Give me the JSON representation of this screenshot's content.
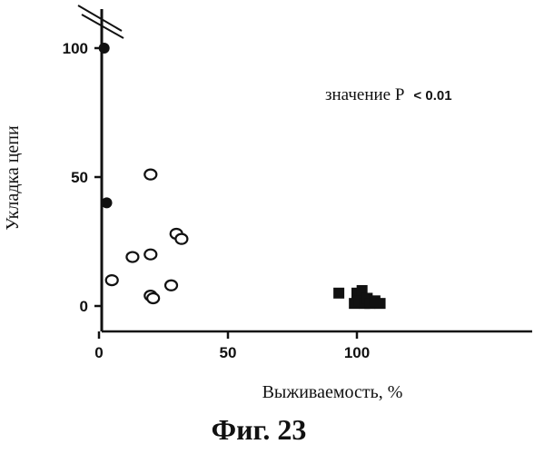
{
  "chart_data": {
    "type": "scatter",
    "xlabel": "Выживаемость, %",
    "ylabel": "Укладка цепи",
    "xlim": [
      0,
      125
    ],
    "ylim": [
      0,
      110
    ],
    "x_ticks": [
      "0",
      "50",
      "100"
    ],
    "y_ticks": [
      "0",
      "50",
      "100"
    ],
    "x_tick_values": [
      0,
      50,
      100
    ],
    "y_tick_values": [
      0,
      50,
      100
    ],
    "y_axis_break": true,
    "annotation": {
      "text": "значение P",
      "value": "< 0.01"
    },
    "series": [
      {
        "marker": "filled-circle",
        "points": [
          {
            "x": 2,
            "y": 100
          },
          {
            "x": 3,
            "y": 40
          }
        ]
      },
      {
        "marker": "open-circle",
        "points": [
          {
            "x": 20,
            "y": 51
          },
          {
            "x": 30,
            "y": 28
          },
          {
            "x": 32,
            "y": 26
          },
          {
            "x": 20,
            "y": 20
          },
          {
            "x": 13,
            "y": 19
          },
          {
            "x": 5,
            "y": 10
          },
          {
            "x": 28,
            "y": 8
          },
          {
            "x": 20,
            "y": 4
          },
          {
            "x": 21,
            "y": 3
          }
        ]
      },
      {
        "marker": "filled-square",
        "points": [
          {
            "x": 93,
            "y": 5
          },
          {
            "x": 99,
            "y": 1
          },
          {
            "x": 100,
            "y": 5
          },
          {
            "x": 101,
            "y": 2
          },
          {
            "x": 102,
            "y": 6
          },
          {
            "x": 103,
            "y": 1
          },
          {
            "x": 104,
            "y": 3
          },
          {
            "x": 105,
            "y": 1
          },
          {
            "x": 107,
            "y": 2
          },
          {
            "x": 109,
            "y": 1
          }
        ]
      }
    ],
    "colors": {
      "ink": "#111111"
    }
  },
  "figure": {
    "caption": "Фиг. 23"
  }
}
